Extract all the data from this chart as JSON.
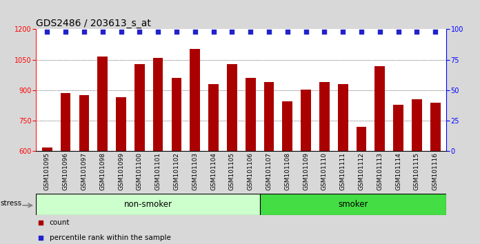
{
  "title": "GDS2486 / 203613_s_at",
  "categories": [
    "GSM101095",
    "GSM101096",
    "GSM101097",
    "GSM101098",
    "GSM101099",
    "GSM101100",
    "GSM101101",
    "GSM101102",
    "GSM101103",
    "GSM101104",
    "GSM101105",
    "GSM101106",
    "GSM101107",
    "GSM101108",
    "GSM101109",
    "GSM101110",
    "GSM101111",
    "GSM101112",
    "GSM101113",
    "GSM101114",
    "GSM101115",
    "GSM101116"
  ],
  "bar_values": [
    620,
    885,
    875,
    1065,
    865,
    1030,
    1060,
    960,
    1105,
    930,
    1030,
    960,
    940,
    845,
    905,
    940,
    930,
    720,
    1020,
    830,
    855,
    840
  ],
  "percentile_values": [
    98,
    98,
    98,
    98,
    98,
    98,
    98,
    98,
    98,
    98,
    98,
    98,
    98,
    98,
    98,
    98,
    98,
    98,
    98,
    98,
    98,
    98
  ],
  "bar_color": "#aa0000",
  "percentile_color": "#2222cc",
  "ylim_left": [
    600,
    1200
  ],
  "ylim_right": [
    0,
    100
  ],
  "yticks_left": [
    600,
    750,
    900,
    1050,
    1200
  ],
  "yticks_right": [
    0,
    25,
    50,
    75,
    100
  ],
  "non_smoker_count": 12,
  "smoker_count": 10,
  "non_smoker_color": "#ccffcc",
  "smoker_color": "#44dd44",
  "stress_label": "stress",
  "non_smoker_label": "non-smoker",
  "smoker_label": "smoker",
  "legend_count_label": "count",
  "legend_pct_label": "percentile rank within the sample",
  "background_color": "#d8d8d8",
  "plot_bg_color": "#ffffff",
  "title_fontsize": 10,
  "tick_fontsize": 7,
  "label_fontsize": 8.5
}
